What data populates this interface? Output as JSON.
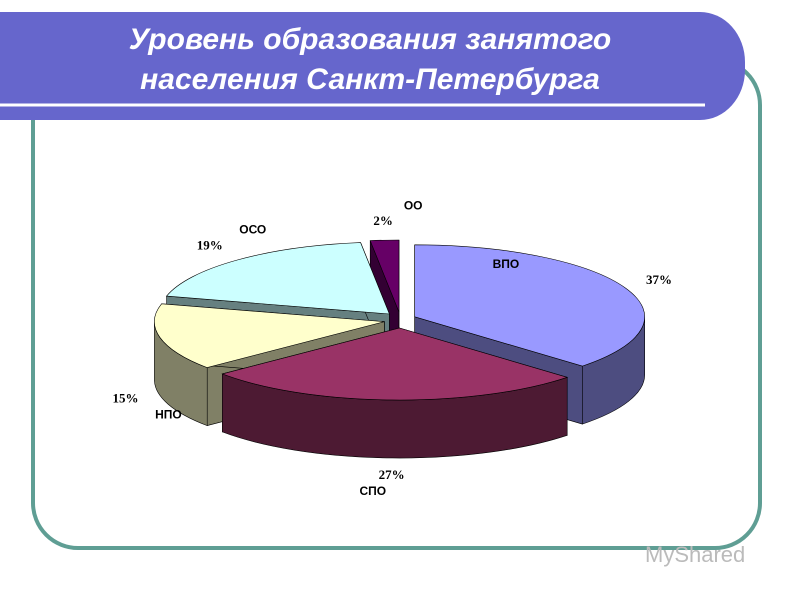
{
  "chart_data": {
    "type": "pie",
    "title": "Уровень образования занятого населения Санкт-Петербурга",
    "categories": [
      "ВПО",
      "СПО",
      "НПО",
      "ОСО",
      "ОО"
    ],
    "values": [
      37,
      27,
      15,
      19,
      2
    ],
    "value_labels": [
      "37%",
      "27%",
      "15%",
      "19%",
      "2%"
    ],
    "colors": [
      "#9999ff",
      "#993366",
      "#ffffcc",
      "#ccffff",
      "#660066"
    ]
  },
  "watermark": "MyShared"
}
